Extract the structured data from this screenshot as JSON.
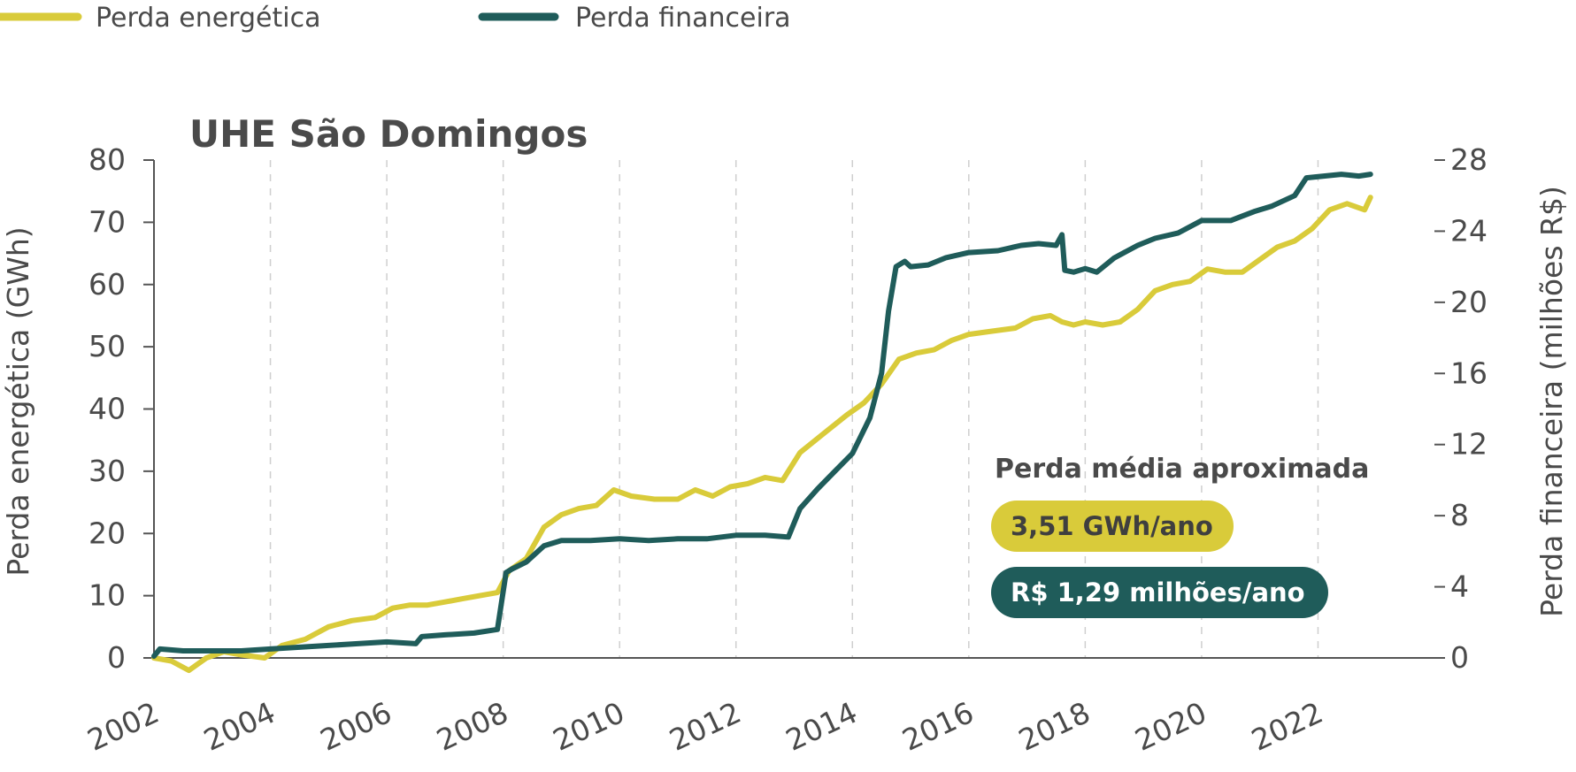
{
  "chart_data": {
    "type": "line",
    "title": "UHE São Domingos",
    "ylabel": "Perda energética (GWh)",
    "y2label": "Perda financeira (milhões R$)",
    "xlim": [
      2002,
      2024
    ],
    "ylim": [
      0,
      80
    ],
    "y2lim": [
      0,
      28
    ],
    "x_ticks": [
      "2002",
      "2004",
      "2006",
      "2008",
      "2010",
      "2012",
      "2014",
      "2016",
      "2018",
      "2020",
      "2022"
    ],
    "y_ticks": [
      "0",
      "10",
      "20",
      "30",
      "40",
      "50",
      "60",
      "70",
      "80"
    ],
    "y2_ticks": [
      "0",
      "4",
      "8",
      "12",
      "16",
      "20",
      "24",
      "28"
    ],
    "grid": "vertical dashed",
    "legend_position": "top-left",
    "series": [
      {
        "name": "Perda energética",
        "axis": "left",
        "color": "#d9cb3a",
        "x": [
          2002.0,
          2002.3,
          2002.6,
          2002.9,
          2003.2,
          2003.5,
          2003.9,
          2004.2,
          2004.6,
          2005.0,
          2005.4,
          2005.8,
          2006.1,
          2006.4,
          2006.7,
          2007.0,
          2007.3,
          2007.6,
          2007.9,
          2008.1,
          2008.4,
          2008.7,
          2009.0,
          2009.3,
          2009.6,
          2009.9,
          2010.2,
          2010.6,
          2011.0,
          2011.3,
          2011.6,
          2011.9,
          2012.2,
          2012.5,
          2012.8,
          2013.1,
          2013.5,
          2013.9,
          2014.2,
          2014.5,
          2014.8,
          2015.1,
          2015.4,
          2015.7,
          2016.0,
          2016.4,
          2016.8,
          2017.1,
          2017.4,
          2017.6,
          2017.8,
          2018.0,
          2018.3,
          2018.6,
          2018.9,
          2019.2,
          2019.5,
          2019.8,
          2020.1,
          2020.4,
          2020.7,
          2021.0,
          2021.3,
          2021.6,
          2021.9,
          2022.2,
          2022.5,
          2022.8,
          2022.9
        ],
        "values": [
          0,
          -0.5,
          -2,
          0,
          1,
          0.5,
          0,
          2,
          3,
          5,
          6,
          6.5,
          8,
          8.5,
          8.5,
          9,
          9.5,
          10,
          10.5,
          14,
          16,
          21,
          23,
          24,
          24.5,
          27,
          26,
          25.5,
          25.5,
          27,
          26,
          27.5,
          28,
          29,
          28.5,
          33,
          36,
          39,
          41,
          44,
          48,
          49,
          49.5,
          51,
          52,
          52.5,
          53,
          54.5,
          55,
          54,
          53.5,
          54,
          53.5,
          54,
          56,
          59,
          60,
          60.5,
          62.5,
          62,
          62,
          64,
          66,
          67,
          69,
          72,
          73,
          72,
          74
        ]
      },
      {
        "name": "Perda financeira",
        "axis": "right",
        "color": "#1f5c5a",
        "x": [
          2002.0,
          2002.1,
          2002.5,
          2003.0,
          2003.5,
          2004.0,
          2004.5,
          2005.0,
          2005.5,
          2006.0,
          2006.5,
          2006.6,
          2007.0,
          2007.5,
          2007.9,
          2008.05,
          2008.15,
          2008.4,
          2008.7,
          2009.0,
          2009.5,
          2010.0,
          2010.5,
          2011.0,
          2011.5,
          2012.0,
          2012.5,
          2012.9,
          2013.1,
          2013.4,
          2013.7,
          2014.0,
          2014.3,
          2014.5,
          2014.62,
          2014.75,
          2014.9,
          2015.0,
          2015.3,
          2015.6,
          2016.0,
          2016.5,
          2016.9,
          2017.2,
          2017.5,
          2017.6,
          2017.65,
          2017.8,
          2018.0,
          2018.2,
          2018.5,
          2018.9,
          2019.2,
          2019.6,
          2020.0,
          2020.5,
          2020.9,
          2021.2,
          2021.6,
          2021.8,
          2022.1,
          2022.4,
          2022.7,
          2022.9
        ],
        "values": [
          0.1,
          0.5,
          0.4,
          0.4,
          0.4,
          0.5,
          0.6,
          0.7,
          0.8,
          0.9,
          0.8,
          1.2,
          1.3,
          1.4,
          1.6,
          4.8,
          5.0,
          5.4,
          6.3,
          6.6,
          6.6,
          6.7,
          6.6,
          6.7,
          6.7,
          6.9,
          6.9,
          6.8,
          8.4,
          9.5,
          10.5,
          11.5,
          13.5,
          16.0,
          19.5,
          22.0,
          22.3,
          22.0,
          22.1,
          22.5,
          22.8,
          22.9,
          23.2,
          23.3,
          23.2,
          23.8,
          21.8,
          21.7,
          21.9,
          21.7,
          22.5,
          23.2,
          23.6,
          23.9,
          24.6,
          24.6,
          25.1,
          25.4,
          26.0,
          27.0,
          27.1,
          27.2,
          27.1,
          27.2
        ]
      }
    ]
  },
  "annotation": {
    "title": "Perda média aproximada",
    "badges": [
      {
        "label": "3,51 GWh/ano",
        "bg": "#d9cb3a",
        "fg": "#3f3f3f"
      },
      {
        "label": "R$ 1,29 milhões/ano",
        "bg": "#1f5c5a",
        "fg": "#ffffff"
      }
    ]
  }
}
